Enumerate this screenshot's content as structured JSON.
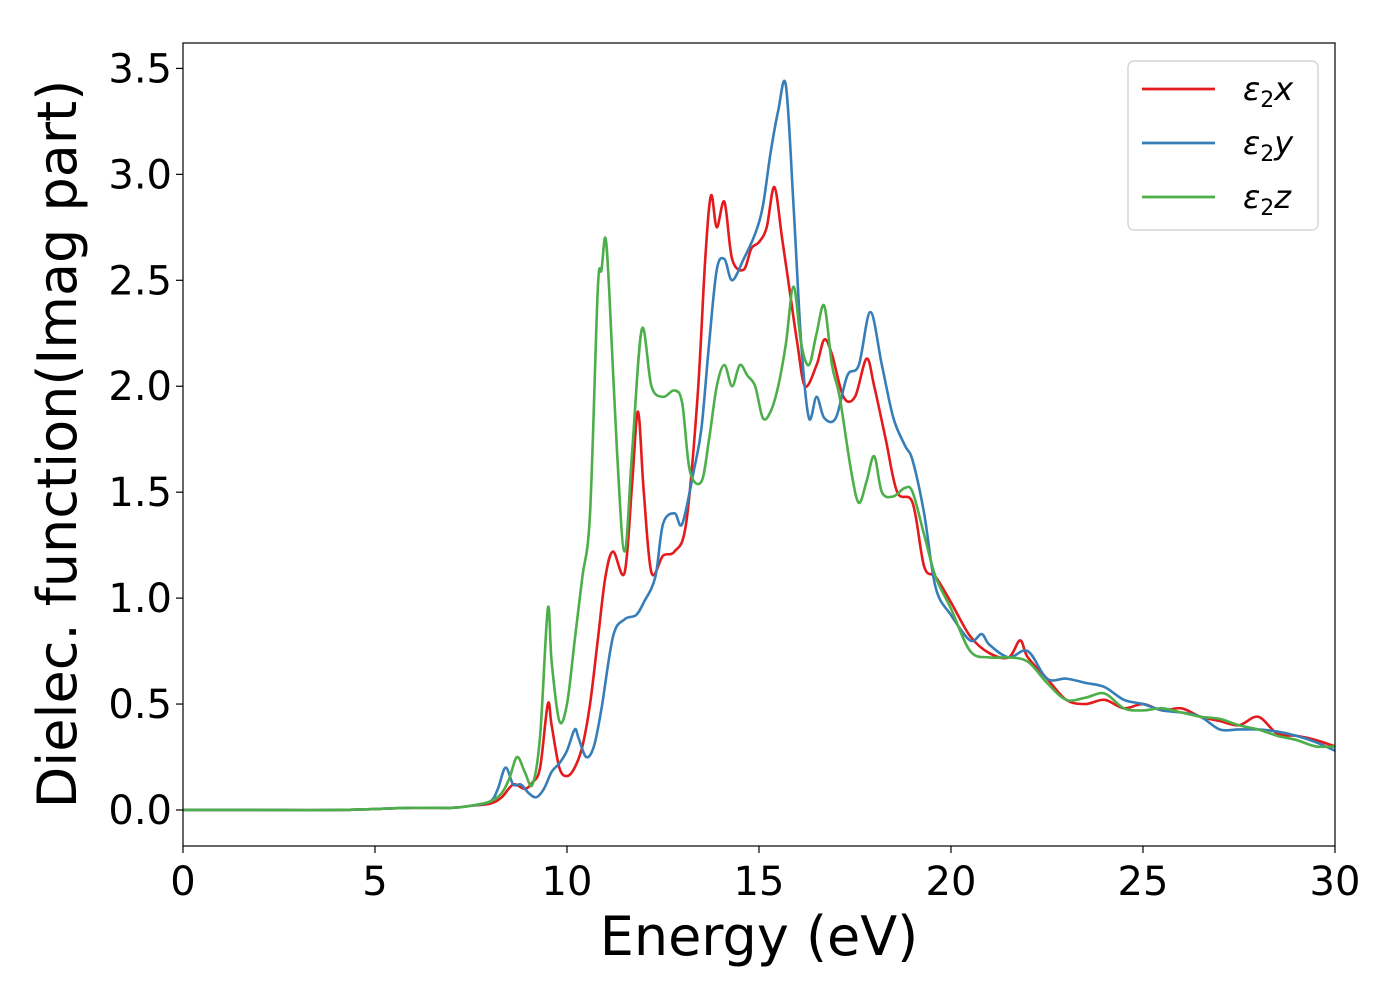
{
  "chart_data": {
    "type": "line",
    "title": "",
    "xlabel": "Energy (eV)",
    "ylabel": "Dielec. function(Imag part)",
    "xlim": [
      0,
      30
    ],
    "ylim": [
      -0.17,
      3.62
    ],
    "xticks": [
      0,
      5,
      10,
      15,
      20,
      25,
      30
    ],
    "xtick_labels": [
      "0",
      "5",
      "10",
      "15",
      "20",
      "25",
      "30"
    ],
    "yticks": [
      0.0,
      0.5,
      1.0,
      1.5,
      2.0,
      2.5,
      3.0,
      3.5
    ],
    "ytick_labels": [
      "0.0",
      "0.5",
      "1.0",
      "1.5",
      "2.0",
      "2.5",
      "3.0",
      "3.5"
    ],
    "grid": false,
    "legend_position": "top-right",
    "series": [
      {
        "name": "ε2x",
        "legend": {
          "main": "ε",
          "sub": "2",
          "tail": "x"
        },
        "color": "#e41a1c",
        "x": [
          0,
          2,
          4,
          6,
          7,
          7.5,
          8,
          8.3,
          8.6,
          8.9,
          9.1,
          9.3,
          9.5,
          9.6,
          9.8,
          10.0,
          10.2,
          10.4,
          10.6,
          10.8,
          11.0,
          11.2,
          11.5,
          11.7,
          11.85,
          12.0,
          12.2,
          12.5,
          12.8,
          13.1,
          13.4,
          13.6,
          13.75,
          13.9,
          14.1,
          14.3,
          14.6,
          14.8,
          15.0,
          15.2,
          15.4,
          15.6,
          15.8,
          16.0,
          16.2,
          16.5,
          16.7,
          16.9,
          17.2,
          17.5,
          17.8,
          18.0,
          18.3,
          18.6,
          19.0,
          19.3,
          19.6,
          20.0,
          20.5,
          21.0,
          21.5,
          21.8,
          22.0,
          22.5,
          23.0,
          23.5,
          24.0,
          24.5,
          25.0,
          25.5,
          26.0,
          26.5,
          27.0,
          27.5,
          28.0,
          28.5,
          29.0,
          29.5,
          30.0
        ],
        "values": [
          0.0,
          0.0,
          0.0,
          0.01,
          0.01,
          0.02,
          0.03,
          0.06,
          0.12,
          0.1,
          0.13,
          0.2,
          0.5,
          0.4,
          0.2,
          0.16,
          0.2,
          0.3,
          0.5,
          0.8,
          1.1,
          1.22,
          1.12,
          1.55,
          1.88,
          1.5,
          1.12,
          1.2,
          1.22,
          1.35,
          1.95,
          2.6,
          2.9,
          2.75,
          2.87,
          2.6,
          2.55,
          2.65,
          2.68,
          2.75,
          2.94,
          2.7,
          2.45,
          2.2,
          2.0,
          2.1,
          2.22,
          2.15,
          1.95,
          1.95,
          2.13,
          2.0,
          1.75,
          1.5,
          1.45,
          1.15,
          1.1,
          0.98,
          0.82,
          0.74,
          0.72,
          0.8,
          0.72,
          0.62,
          0.52,
          0.5,
          0.52,
          0.48,
          0.5,
          0.47,
          0.48,
          0.44,
          0.42,
          0.4,
          0.44,
          0.36,
          0.35,
          0.33,
          0.3
        ]
      },
      {
        "name": "ε2y",
        "legend": {
          "main": "ε",
          "sub": "2",
          "tail": "y"
        },
        "color": "#377eb8",
        "x": [
          0,
          2,
          4,
          6,
          7,
          7.5,
          8,
          8.2,
          8.4,
          8.6,
          8.8,
          9.0,
          9.2,
          9.4,
          9.6,
          9.8,
          10.0,
          10.2,
          10.3,
          10.5,
          10.7,
          10.9,
          11.2,
          11.5,
          11.8,
          12.0,
          12.3,
          12.5,
          12.8,
          13.0,
          13.3,
          13.5,
          13.7,
          13.9,
          14.1,
          14.3,
          14.6,
          14.9,
          15.1,
          15.3,
          15.5,
          15.7,
          15.9,
          16.1,
          16.3,
          16.5,
          16.7,
          17.0,
          17.3,
          17.6,
          17.9,
          18.2,
          18.5,
          18.8,
          19.0,
          19.3,
          19.6,
          20.0,
          20.5,
          20.8,
          21.0,
          21.5,
          22.0,
          22.5,
          23.0,
          23.5,
          24.0,
          24.5,
          25.0,
          25.5,
          26.0,
          26.5,
          27.0,
          27.5,
          28.0,
          28.5,
          29.0,
          29.5,
          30.0
        ],
        "values": [
          0.0,
          0.0,
          0.0,
          0.01,
          0.01,
          0.02,
          0.04,
          0.1,
          0.2,
          0.12,
          0.12,
          0.08,
          0.06,
          0.1,
          0.18,
          0.22,
          0.28,
          0.38,
          0.34,
          0.25,
          0.3,
          0.48,
          0.82,
          0.9,
          0.92,
          0.98,
          1.1,
          1.35,
          1.4,
          1.35,
          1.6,
          1.8,
          2.2,
          2.55,
          2.6,
          2.5,
          2.6,
          2.72,
          2.85,
          3.1,
          3.3,
          3.42,
          2.85,
          2.2,
          1.85,
          1.95,
          1.85,
          1.85,
          2.05,
          2.1,
          2.35,
          2.1,
          1.85,
          1.72,
          1.65,
          1.4,
          1.05,
          0.92,
          0.8,
          0.83,
          0.78,
          0.72,
          0.75,
          0.62,
          0.62,
          0.6,
          0.58,
          0.52,
          0.5,
          0.47,
          0.46,
          0.44,
          0.38,
          0.38,
          0.38,
          0.37,
          0.35,
          0.32,
          0.28
        ]
      },
      {
        "name": "ε2z",
        "legend": {
          "main": "ε",
          "sub": "2",
          "tail": "z"
        },
        "color": "#4daf4a",
        "x": [
          0,
          2,
          4,
          6,
          7,
          7.5,
          8,
          8.3,
          8.5,
          8.7,
          8.9,
          9.1,
          9.3,
          9.5,
          9.6,
          9.8,
          10.0,
          10.2,
          10.4,
          10.6,
          10.8,
          10.9,
          11.0,
          11.1,
          11.3,
          11.5,
          11.7,
          11.95,
          12.2,
          12.5,
          12.8,
          13.0,
          13.2,
          13.5,
          13.7,
          13.9,
          14.1,
          14.3,
          14.5,
          14.7,
          14.9,
          15.1,
          15.3,
          15.5,
          15.7,
          15.9,
          16.1,
          16.3,
          16.5,
          16.7,
          16.9,
          17.1,
          17.4,
          17.6,
          17.8,
          18.0,
          18.2,
          18.5,
          18.8,
          19.0,
          19.3,
          19.6,
          20.0,
          20.5,
          21.0,
          21.5,
          22.0,
          22.5,
          23.0,
          23.5,
          24.0,
          24.5,
          25.0,
          25.5,
          26.0,
          26.5,
          27.0,
          27.5,
          28.0,
          28.5,
          29.0,
          29.5,
          30.0
        ],
        "values": [
          0.0,
          0.0,
          0.0,
          0.01,
          0.01,
          0.02,
          0.04,
          0.08,
          0.15,
          0.25,
          0.18,
          0.12,
          0.35,
          0.95,
          0.7,
          0.42,
          0.5,
          0.8,
          1.1,
          1.4,
          2.45,
          2.55,
          2.7,
          2.45,
          1.7,
          1.22,
          1.7,
          2.27,
          2.0,
          1.95,
          1.98,
          1.92,
          1.6,
          1.55,
          1.75,
          2.0,
          2.1,
          2.0,
          2.1,
          2.05,
          2.0,
          1.85,
          1.88,
          2.0,
          2.2,
          2.47,
          2.2,
          2.1,
          2.25,
          2.38,
          2.1,
          1.95,
          1.6,
          1.45,
          1.55,
          1.67,
          1.5,
          1.48,
          1.52,
          1.5,
          1.3,
          1.1,
          0.95,
          0.75,
          0.72,
          0.72,
          0.7,
          0.6,
          0.52,
          0.53,
          0.55,
          0.48,
          0.47,
          0.48,
          0.46,
          0.44,
          0.43,
          0.4,
          0.38,
          0.35,
          0.33,
          0.3,
          0.3
        ]
      }
    ]
  }
}
